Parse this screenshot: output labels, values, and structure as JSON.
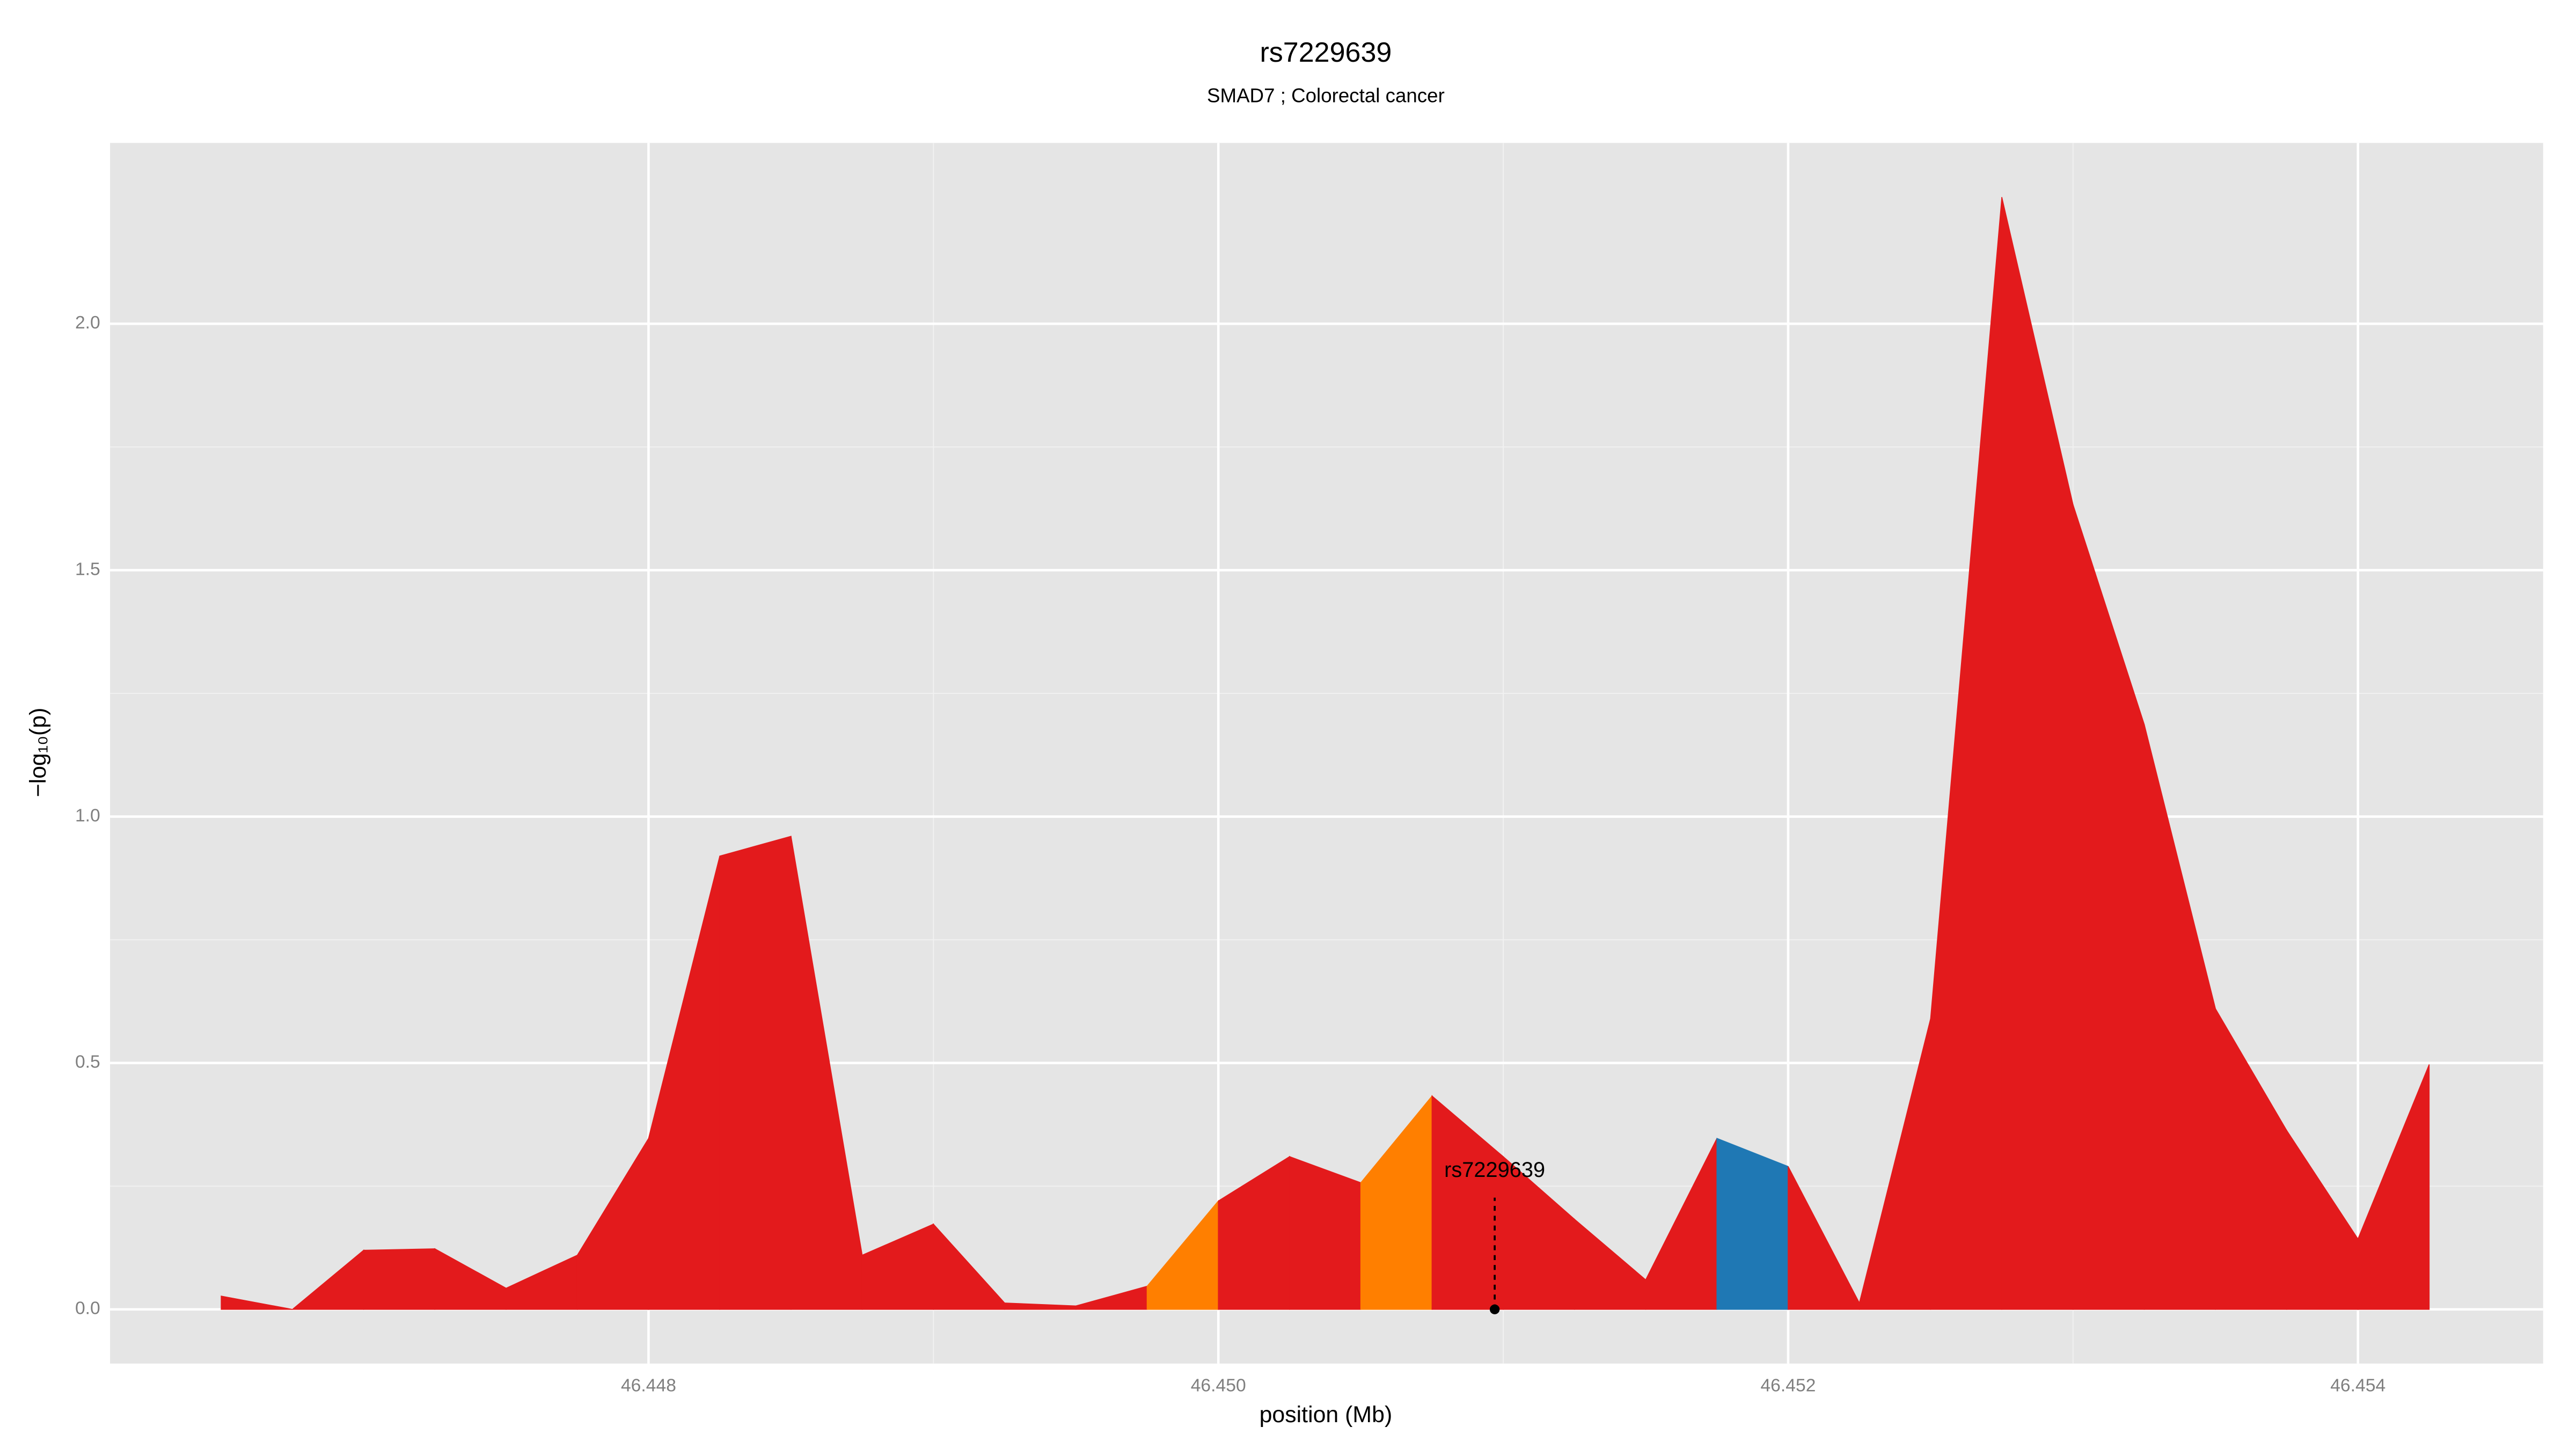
{
  "chart_data": {
    "type": "area",
    "title": "rs7229639",
    "subtitle": "SMAD7 ; Colorectal cancer",
    "x_label": "position (Mb)",
    "y_label": "−log₁₀(p)",
    "x": [
      46.4465,
      46.44675,
      46.447,
      46.44725,
      46.4475,
      46.44775,
      46.448,
      46.44825,
      46.4485,
      46.44875,
      46.449,
      46.44925,
      46.4495,
      46.44975,
      46.45,
      46.45025,
      46.4505,
      46.45075,
      46.451,
      46.45125,
      46.4515,
      46.45175,
      46.452,
      46.45225,
      46.4525,
      46.45275,
      46.453,
      46.45325,
      46.4535,
      46.45375,
      46.454,
      46.45425
    ],
    "values": [
      0.027,
      0.0,
      0.12,
      0.123,
      0.043,
      0.11,
      0.347,
      0.92,
      0.96,
      0.11,
      0.173,
      0.013,
      0.007,
      0.047,
      0.22,
      0.31,
      0.257,
      0.433,
      0.31,
      0.183,
      0.06,
      0.347,
      0.29,
      0.013,
      0.59,
      2.257,
      1.633,
      1.187,
      0.61,
      0.363,
      0.143,
      0.497
    ],
    "colors": [
      "#e31a1c",
      "#e31a1c",
      "#e31a1c",
      "#e31a1c",
      "#e31a1c",
      "#e31a1c",
      "#e31a1c",
      "#e31a1c",
      "#e31a1c",
      "#e31a1c",
      "#e31a1c",
      "#e31a1c",
      "#e31a1c",
      "#ff7f00",
      "#e31a1c",
      "#e31a1c",
      "#ff7f00",
      "#e31a1c",
      "#e31a1c",
      "#e31a1c",
      "#e31a1c",
      "#1f78b4",
      "#e31a1c",
      "#e31a1c",
      "#e31a1c",
      "#e31a1c",
      "#e31a1c",
      "#e31a1c",
      "#e31a1c",
      "#e31a1c",
      "#e31a1c",
      "#e31a1c"
    ],
    "annotation": {
      "text": "rs7229639",
      "x": 46.45097,
      "y": 0
    },
    "xlim": [
      46.44611,
      46.45465
    ],
    "ylim": [
      -0.11,
      2.367
    ],
    "xticks": [
      46.448,
      {
        "value": 46.45,
        "label": "46.450"
      },
      46.452,
      46.454
    ],
    "yticks": [
      {
        "value": 0,
        "label": "0.0"
      },
      0.5,
      {
        "value": 1,
        "label": "1.0"
      },
      1.5,
      {
        "value": 2,
        "label": "2.0"
      }
    ],
    "grid": true
  }
}
